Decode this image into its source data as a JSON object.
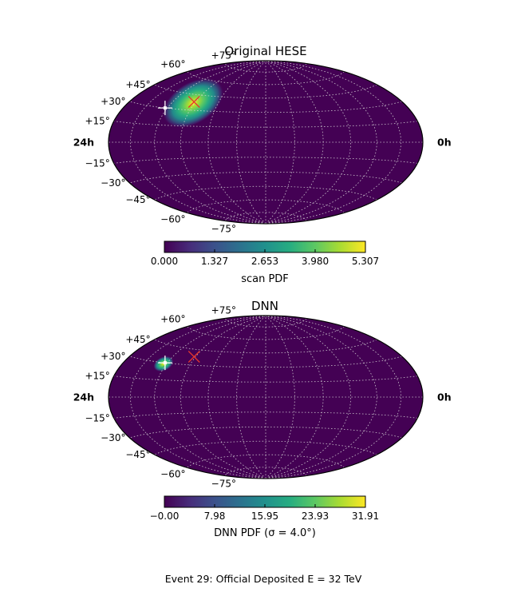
{
  "caption": "Event 29: Official Deposited E = 32 TeV",
  "colormap": [
    "#440154",
    "#472c7a",
    "#3b518b",
    "#2c718e",
    "#21908d",
    "#27ad81",
    "#5cc863",
    "#aadc32",
    "#fde725"
  ],
  "chart_data": [
    {
      "type": "heatmap",
      "projection": "hammer-aitoff",
      "title": "Original HESE",
      "dec_labels": [
        "+75°",
        "+60°",
        "+45°",
        "+30°",
        "+15°",
        "−15°",
        "−30°",
        "−45°",
        "−60°",
        "−75°"
      ],
      "ra_left_label": "24h",
      "ra_right_label": "0h",
      "grid": true,
      "hotspot": {
        "ra_deg": 272,
        "dec_deg": 37,
        "sigma_ra_deg": 16,
        "sigma_dec_deg": 9.5,
        "rotation_deg": 32
      },
      "markers": [
        {
          "kind": "true-direction",
          "symbol": "x",
          "color": "#e3372c",
          "ra_deg": 272,
          "dec_deg": 38
        },
        {
          "kind": "best-fit",
          "symbol": "+",
          "color": "#ffffff",
          "ra_deg": 303,
          "dec_deg": 30
        }
      ],
      "colorbar": {
        "label": "scan PDF",
        "ticks": [
          "0.000",
          "1.327",
          "2.653",
          "3.980",
          "5.307"
        ],
        "range": [
          0,
          5.307
        ]
      }
    },
    {
      "type": "heatmap",
      "projection": "hammer-aitoff",
      "title": "DNN",
      "dec_labels": [
        "+75°",
        "+60°",
        "+45°",
        "+30°",
        "+15°",
        "−15°",
        "−30°",
        "−45°",
        "−60°",
        "−75°"
      ],
      "ra_left_label": "24h",
      "ra_right_label": "0h",
      "grid": true,
      "hotspot": {
        "ra_deg": 304,
        "dec_deg": 29,
        "sigma_ra_deg": 5,
        "sigma_dec_deg": 3.2,
        "rotation_deg": 25
      },
      "markers": [
        {
          "kind": "true-direction",
          "symbol": "x",
          "color": "#e3372c",
          "ra_deg": 272,
          "dec_deg": 38
        },
        {
          "kind": "best-fit",
          "symbol": "+",
          "color": "#ffffff",
          "ra_deg": 303,
          "dec_deg": 30
        }
      ],
      "colorbar": {
        "label": "DNN PDF (σ = 4.0°)",
        "ticks": [
          "−0.00",
          "7.98",
          "15.95",
          "23.93",
          "31.91"
        ],
        "range": [
          0,
          31.91
        ]
      }
    }
  ]
}
